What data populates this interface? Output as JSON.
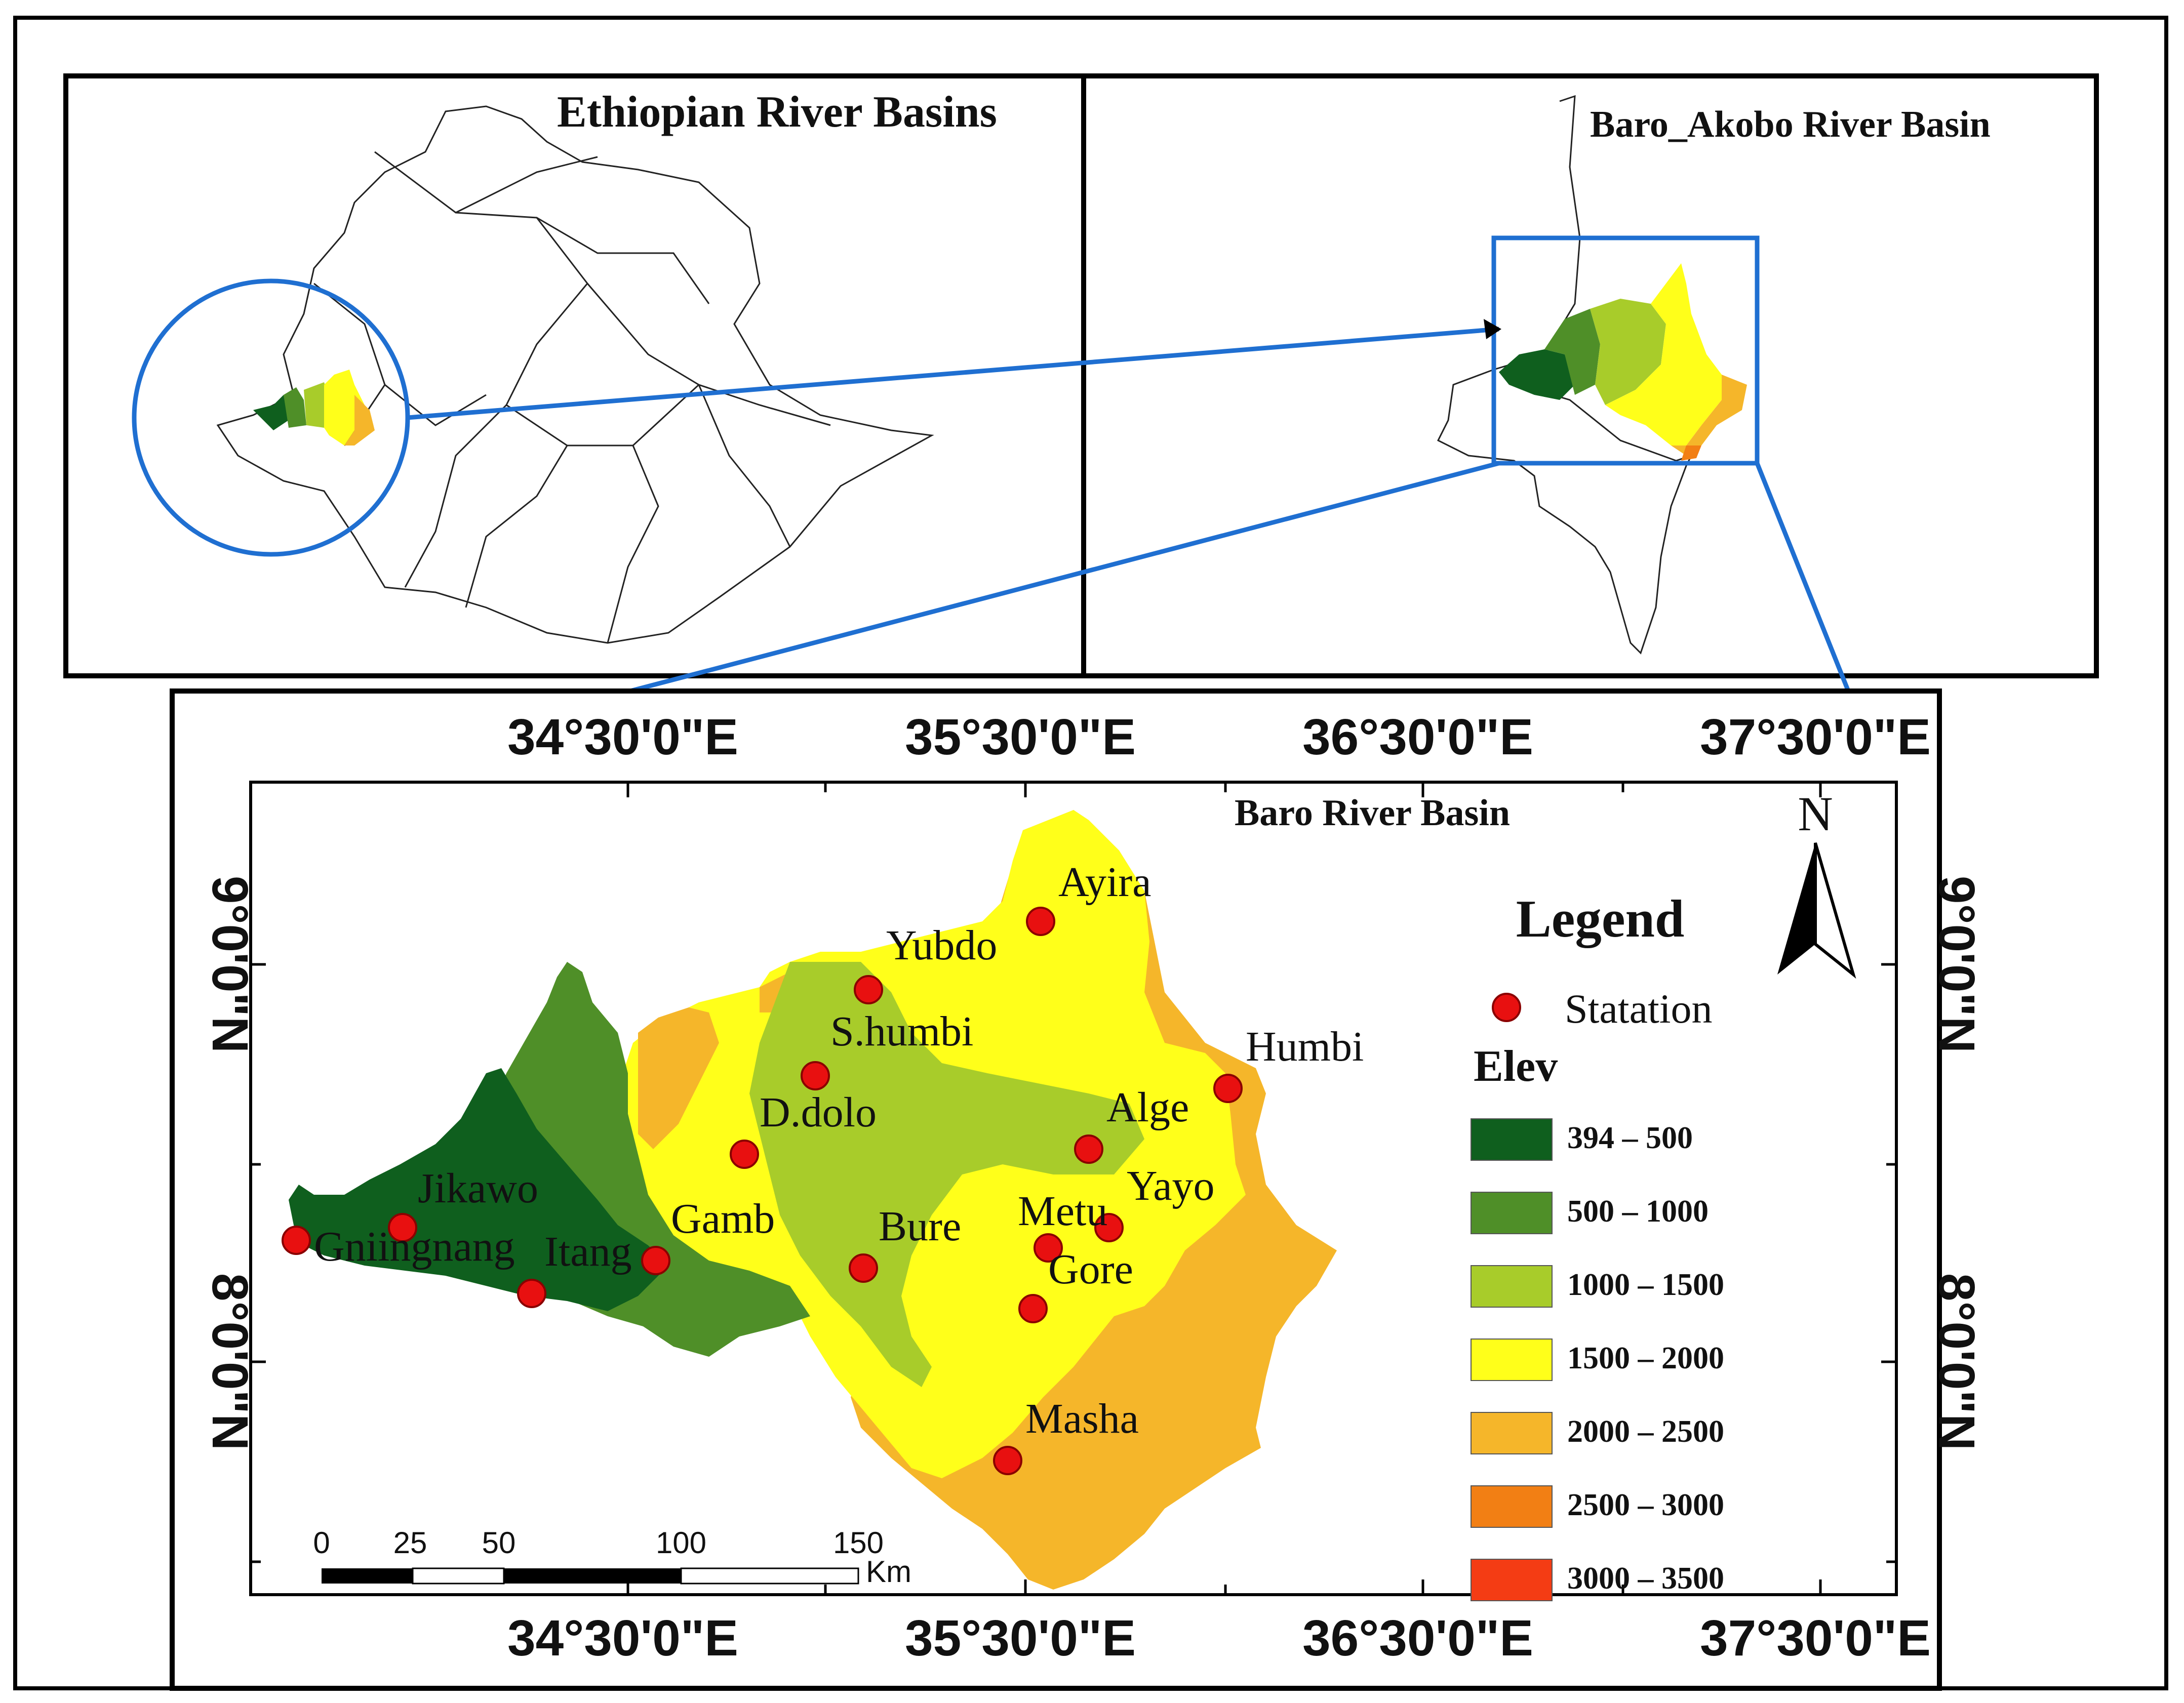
{
  "panels": {
    "ethiopia": {
      "title": "Ethiopian River Basins"
    },
    "baro_akobo": {
      "title": "Baro_Akobo River Basin"
    },
    "baro": {
      "title": "Baro River Basin"
    }
  },
  "coordinates": {
    "longitudes": [
      "34°30'0\"E",
      "35°30'0\"E",
      "36°30'0\"E",
      "37°30'0\"E"
    ],
    "latitudes": [
      "9°0'0\"N",
      "8°0'0\"N"
    ]
  },
  "north_arrow": {
    "label": "N",
    "icon": "north-arrow-icon"
  },
  "legend": {
    "title": "Legend",
    "station_label": "Statation",
    "station_color": "#e81010",
    "elev_title": "Elev",
    "classes": [
      {
        "label": "394 – 500",
        "color": "#0f5f1e"
      },
      {
        "label": "500 – 1000",
        "color": "#4f8f28"
      },
      {
        "label": "1000 – 1500",
        "color": "#a8cc2a"
      },
      {
        "label": "1500 – 2000",
        "color": "#ffff1a"
      },
      {
        "label": "2000 – 2500",
        "color": "#f5b62a"
      },
      {
        "label": "2500 – 3000",
        "color": "#f27f14"
      },
      {
        "label": "3000 – 3500",
        "color": "#f43c14"
      }
    ]
  },
  "scale_bar": {
    "ticks": [
      "0",
      "25",
      "50",
      "100",
      "150"
    ],
    "unit": "Km"
  },
  "stations": [
    {
      "name": "Ayira"
    },
    {
      "name": "Yubdo"
    },
    {
      "name": "S.humbi"
    },
    {
      "name": "Humbi"
    },
    {
      "name": "D.dolo"
    },
    {
      "name": "Alge"
    },
    {
      "name": "Yayo"
    },
    {
      "name": "Jikawo"
    },
    {
      "name": "Gamb"
    },
    {
      "name": "Bure"
    },
    {
      "name": "Metu"
    },
    {
      "name": "Gniingnang"
    },
    {
      "name": "Itang"
    },
    {
      "name": "Gore"
    },
    {
      "name": "Masha"
    }
  ],
  "colors": {
    "highlight": "#1f6fd1",
    "frame": "#000000"
  }
}
